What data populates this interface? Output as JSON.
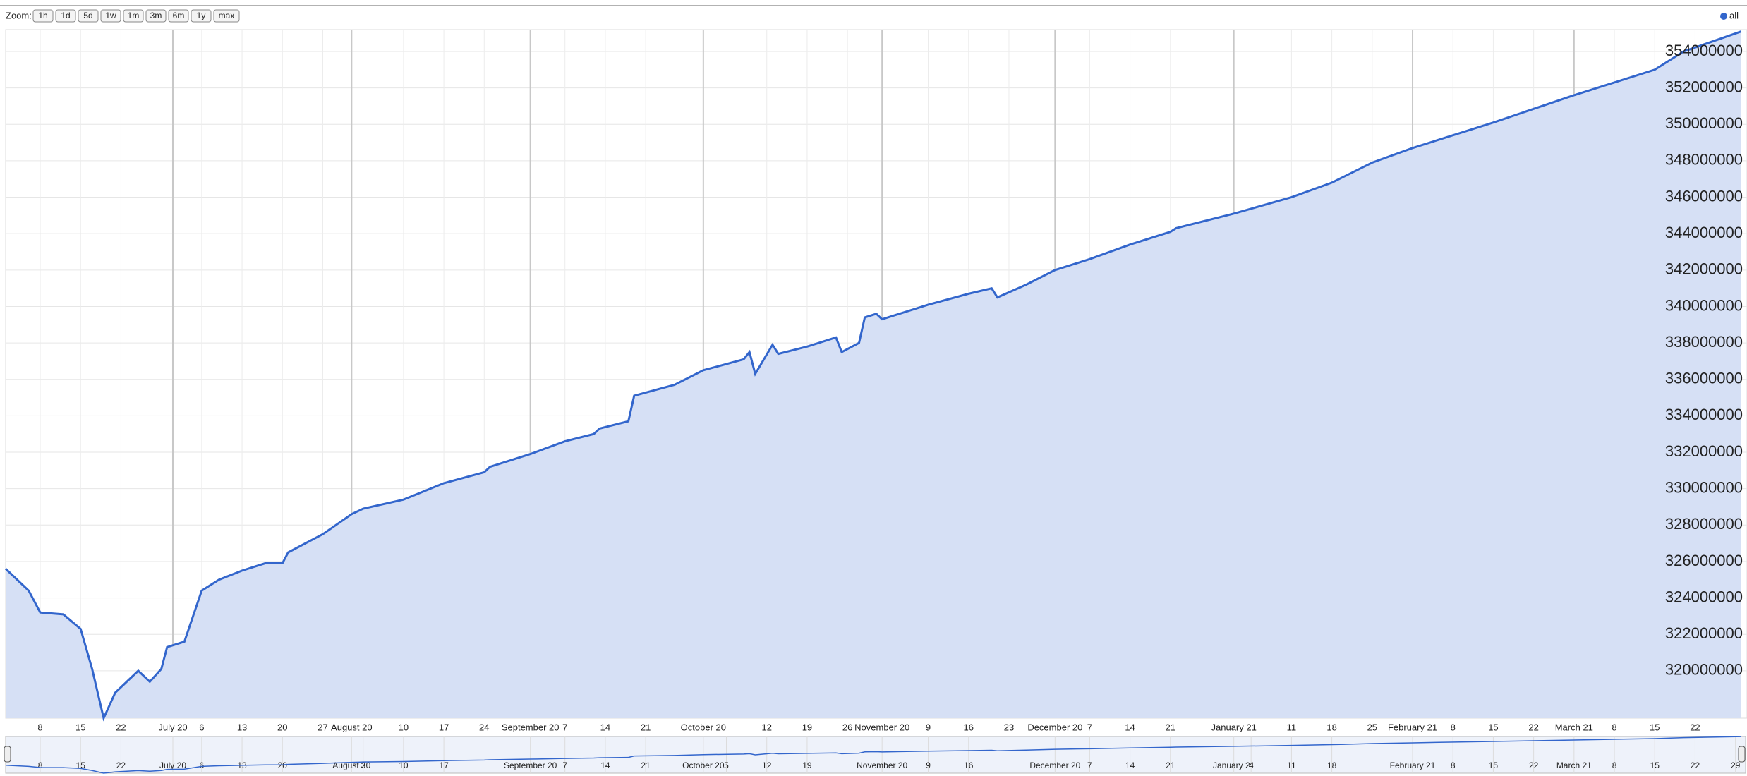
{
  "zoom": {
    "label": "Zoom:",
    "buttons": [
      "1h",
      "1d",
      "5d",
      "1w",
      "1m",
      "3m",
      "6m",
      "1y",
      "max"
    ]
  },
  "chart_data": {
    "type": "area",
    "x": [
      "2020-06-02",
      "2020-06-06",
      "2020-06-08",
      "2020-06-12",
      "2020-06-15",
      "2020-06-17",
      "2020-06-19",
      "2020-06-21",
      "2020-06-25",
      "2020-06-27",
      "2020-06-29",
      "2020-06-30",
      "2020-07-03",
      "2020-07-06",
      "2020-07-09",
      "2020-07-13",
      "2020-07-17",
      "2020-07-20",
      "2020-07-21",
      "2020-07-27",
      "2020-08-01",
      "2020-08-03",
      "2020-08-10",
      "2020-08-17",
      "2020-08-24",
      "2020-08-25",
      "2020-09-01",
      "2020-09-07",
      "2020-09-12",
      "2020-09-13",
      "2020-09-18",
      "2020-09-19",
      "2020-09-26",
      "2020-10-01",
      "2020-10-08",
      "2020-10-09",
      "2020-10-10",
      "2020-10-13",
      "2020-10-14",
      "2020-10-19",
      "2020-10-24",
      "2020-10-25",
      "2020-10-28",
      "2020-10-29",
      "2020-10-31",
      "2020-11-01",
      "2020-11-09",
      "2020-11-16",
      "2020-11-20",
      "2020-11-21",
      "2020-11-26",
      "2020-12-01",
      "2020-12-07",
      "2020-12-14",
      "2020-12-21",
      "2020-12-22",
      "2021-01-01",
      "2021-01-11",
      "2021-01-18",
      "2021-01-25",
      "2021-02-01",
      "2021-02-15",
      "2021-03-01",
      "2021-03-15",
      "2021-03-20",
      "2021-03-30"
    ],
    "series": [
      {
        "name": "all",
        "color": "#3366cc",
        "fill": "#d6e0f5",
        "values": [
          325600000,
          324400000,
          323200000,
          323100000,
          322300000,
          320100000,
          317400000,
          318800000,
          320000000,
          319400000,
          320100000,
          321300000,
          321600000,
          324400000,
          325000000,
          325500000,
          325900000,
          325900000,
          326500000,
          327500000,
          328600000,
          328900000,
          329400000,
          330300000,
          330900000,
          331200000,
          331900000,
          332600000,
          333000000,
          333300000,
          333700000,
          335100000,
          335700000,
          336500000,
          337100000,
          337500000,
          336300000,
          337900000,
          337400000,
          337800000,
          338300000,
          337500000,
          338000000,
          339400000,
          339600000,
          339300000,
          340100000,
          340700000,
          341000000,
          340500000,
          341200000,
          342000000,
          342600000,
          343400000,
          344100000,
          344300000,
          345100000,
          346000000,
          346800000,
          347900000,
          348700000,
          350100000,
          351600000,
          353000000,
          354000000,
          355100000
        ]
      }
    ],
    "xlim": [
      "2020-06-02",
      "2021-03-31"
    ],
    "ylim": [
      317400000,
      355200000
    ],
    "yticks": [
      320000000,
      322000000,
      324000000,
      326000000,
      328000000,
      330000000,
      332000000,
      334000000,
      336000000,
      338000000,
      340000000,
      342000000,
      344000000,
      346000000,
      348000000,
      350000000,
      352000000,
      354000000
    ],
    "xticks": [
      {
        "value": "2020-06-08",
        "label": "8"
      },
      {
        "value": "2020-06-15",
        "label": "15"
      },
      {
        "value": "2020-06-22",
        "label": "22"
      },
      {
        "value": "2020-07-01",
        "label": "July 20"
      },
      {
        "value": "2020-07-06",
        "label": "6"
      },
      {
        "value": "2020-07-13",
        "label": "13"
      },
      {
        "value": "2020-07-20",
        "label": "20"
      },
      {
        "value": "2020-07-27",
        "label": "27"
      },
      {
        "value": "2020-08-01",
        "label": "August 20"
      },
      {
        "value": "2020-08-10",
        "label": "10"
      },
      {
        "value": "2020-08-17",
        "label": "17"
      },
      {
        "value": "2020-08-24",
        "label": "24"
      },
      {
        "value": "2020-09-01",
        "label": "September 20"
      },
      {
        "value": "2020-09-07",
        "label": "7"
      },
      {
        "value": "2020-09-14",
        "label": "14"
      },
      {
        "value": "2020-09-21",
        "label": "21"
      },
      {
        "value": "2020-10-01",
        "label": "October 20"
      },
      {
        "value": "2020-10-12",
        "label": "12"
      },
      {
        "value": "2020-10-19",
        "label": "19"
      },
      {
        "value": "2020-10-26",
        "label": "26"
      },
      {
        "value": "2020-11-01",
        "label": "November 20"
      },
      {
        "value": "2020-11-09",
        "label": "9"
      },
      {
        "value": "2020-11-16",
        "label": "16"
      },
      {
        "value": "2020-11-23",
        "label": "23"
      },
      {
        "value": "2020-12-01",
        "label": "December 20"
      },
      {
        "value": "2020-12-07",
        "label": "7"
      },
      {
        "value": "2020-12-14",
        "label": "14"
      },
      {
        "value": "2020-12-21",
        "label": "21"
      },
      {
        "value": "2021-01-01",
        "label": "January 21"
      },
      {
        "value": "2021-01-11",
        "label": "11"
      },
      {
        "value": "2021-01-18",
        "label": "18"
      },
      {
        "value": "2021-01-25",
        "label": "25"
      },
      {
        "value": "2021-02-01",
        "label": "February 21"
      },
      {
        "value": "2021-02-08",
        "label": "8"
      },
      {
        "value": "2021-02-15",
        "label": "15"
      },
      {
        "value": "2021-02-22",
        "label": "22"
      },
      {
        "value": "2021-03-01",
        "label": "March 21"
      },
      {
        "value": "2021-03-08",
        "label": "8"
      },
      {
        "value": "2021-03-15",
        "label": "15"
      },
      {
        "value": "2021-03-22",
        "label": "22"
      }
    ],
    "grid": true,
    "legend": "top-right",
    "navigator": {
      "xticks": [
        {
          "value": "2020-06-08",
          "label": "8"
        },
        {
          "value": "2020-06-15",
          "label": "15"
        },
        {
          "value": "2020-06-22",
          "label": "22"
        },
        {
          "value": "2020-07-01",
          "label": "July 20"
        },
        {
          "value": "2020-07-06",
          "label": "6"
        },
        {
          "value": "2020-07-13",
          "label": "13"
        },
        {
          "value": "2020-07-20",
          "label": "20"
        },
        {
          "value": "2020-08-01",
          "label": "August 20"
        },
        {
          "value": "2020-08-03",
          "label": "3"
        },
        {
          "value": "2020-08-10",
          "label": "10"
        },
        {
          "value": "2020-08-17",
          "label": "17"
        },
        {
          "value": "2020-09-01",
          "label": "September 20"
        },
        {
          "value": "2020-09-07",
          "label": "7"
        },
        {
          "value": "2020-09-14",
          "label": "14"
        },
        {
          "value": "2020-09-21",
          "label": "21"
        },
        {
          "value": "2020-10-01",
          "label": "October 20"
        },
        {
          "value": "2020-10-05",
          "label": "5"
        },
        {
          "value": "2020-10-12",
          "label": "12"
        },
        {
          "value": "2020-10-19",
          "label": "19"
        },
        {
          "value": "2020-11-01",
          "label": "November 20"
        },
        {
          "value": "2020-11-09",
          "label": "9"
        },
        {
          "value": "2020-11-16",
          "label": "16"
        },
        {
          "value": "2020-12-01",
          "label": "December 20"
        },
        {
          "value": "2020-12-07",
          "label": "7"
        },
        {
          "value": "2020-12-14",
          "label": "14"
        },
        {
          "value": "2020-12-21",
          "label": "21"
        },
        {
          "value": "2021-01-01",
          "label": "January 21"
        },
        {
          "value": "2021-01-04",
          "label": "4"
        },
        {
          "value": "2021-01-11",
          "label": "11"
        },
        {
          "value": "2021-01-18",
          "label": "18"
        },
        {
          "value": "2021-02-01",
          "label": "February 21"
        },
        {
          "value": "2021-02-08",
          "label": "8"
        },
        {
          "value": "2021-02-15",
          "label": "15"
        },
        {
          "value": "2021-02-22",
          "label": "22"
        },
        {
          "value": "2021-03-01",
          "label": "March 21"
        },
        {
          "value": "2021-03-08",
          "label": "8"
        },
        {
          "value": "2021-03-15",
          "label": "15"
        },
        {
          "value": "2021-03-22",
          "label": "22"
        },
        {
          "value": "2021-03-29",
          "label": "29"
        }
      ]
    }
  }
}
